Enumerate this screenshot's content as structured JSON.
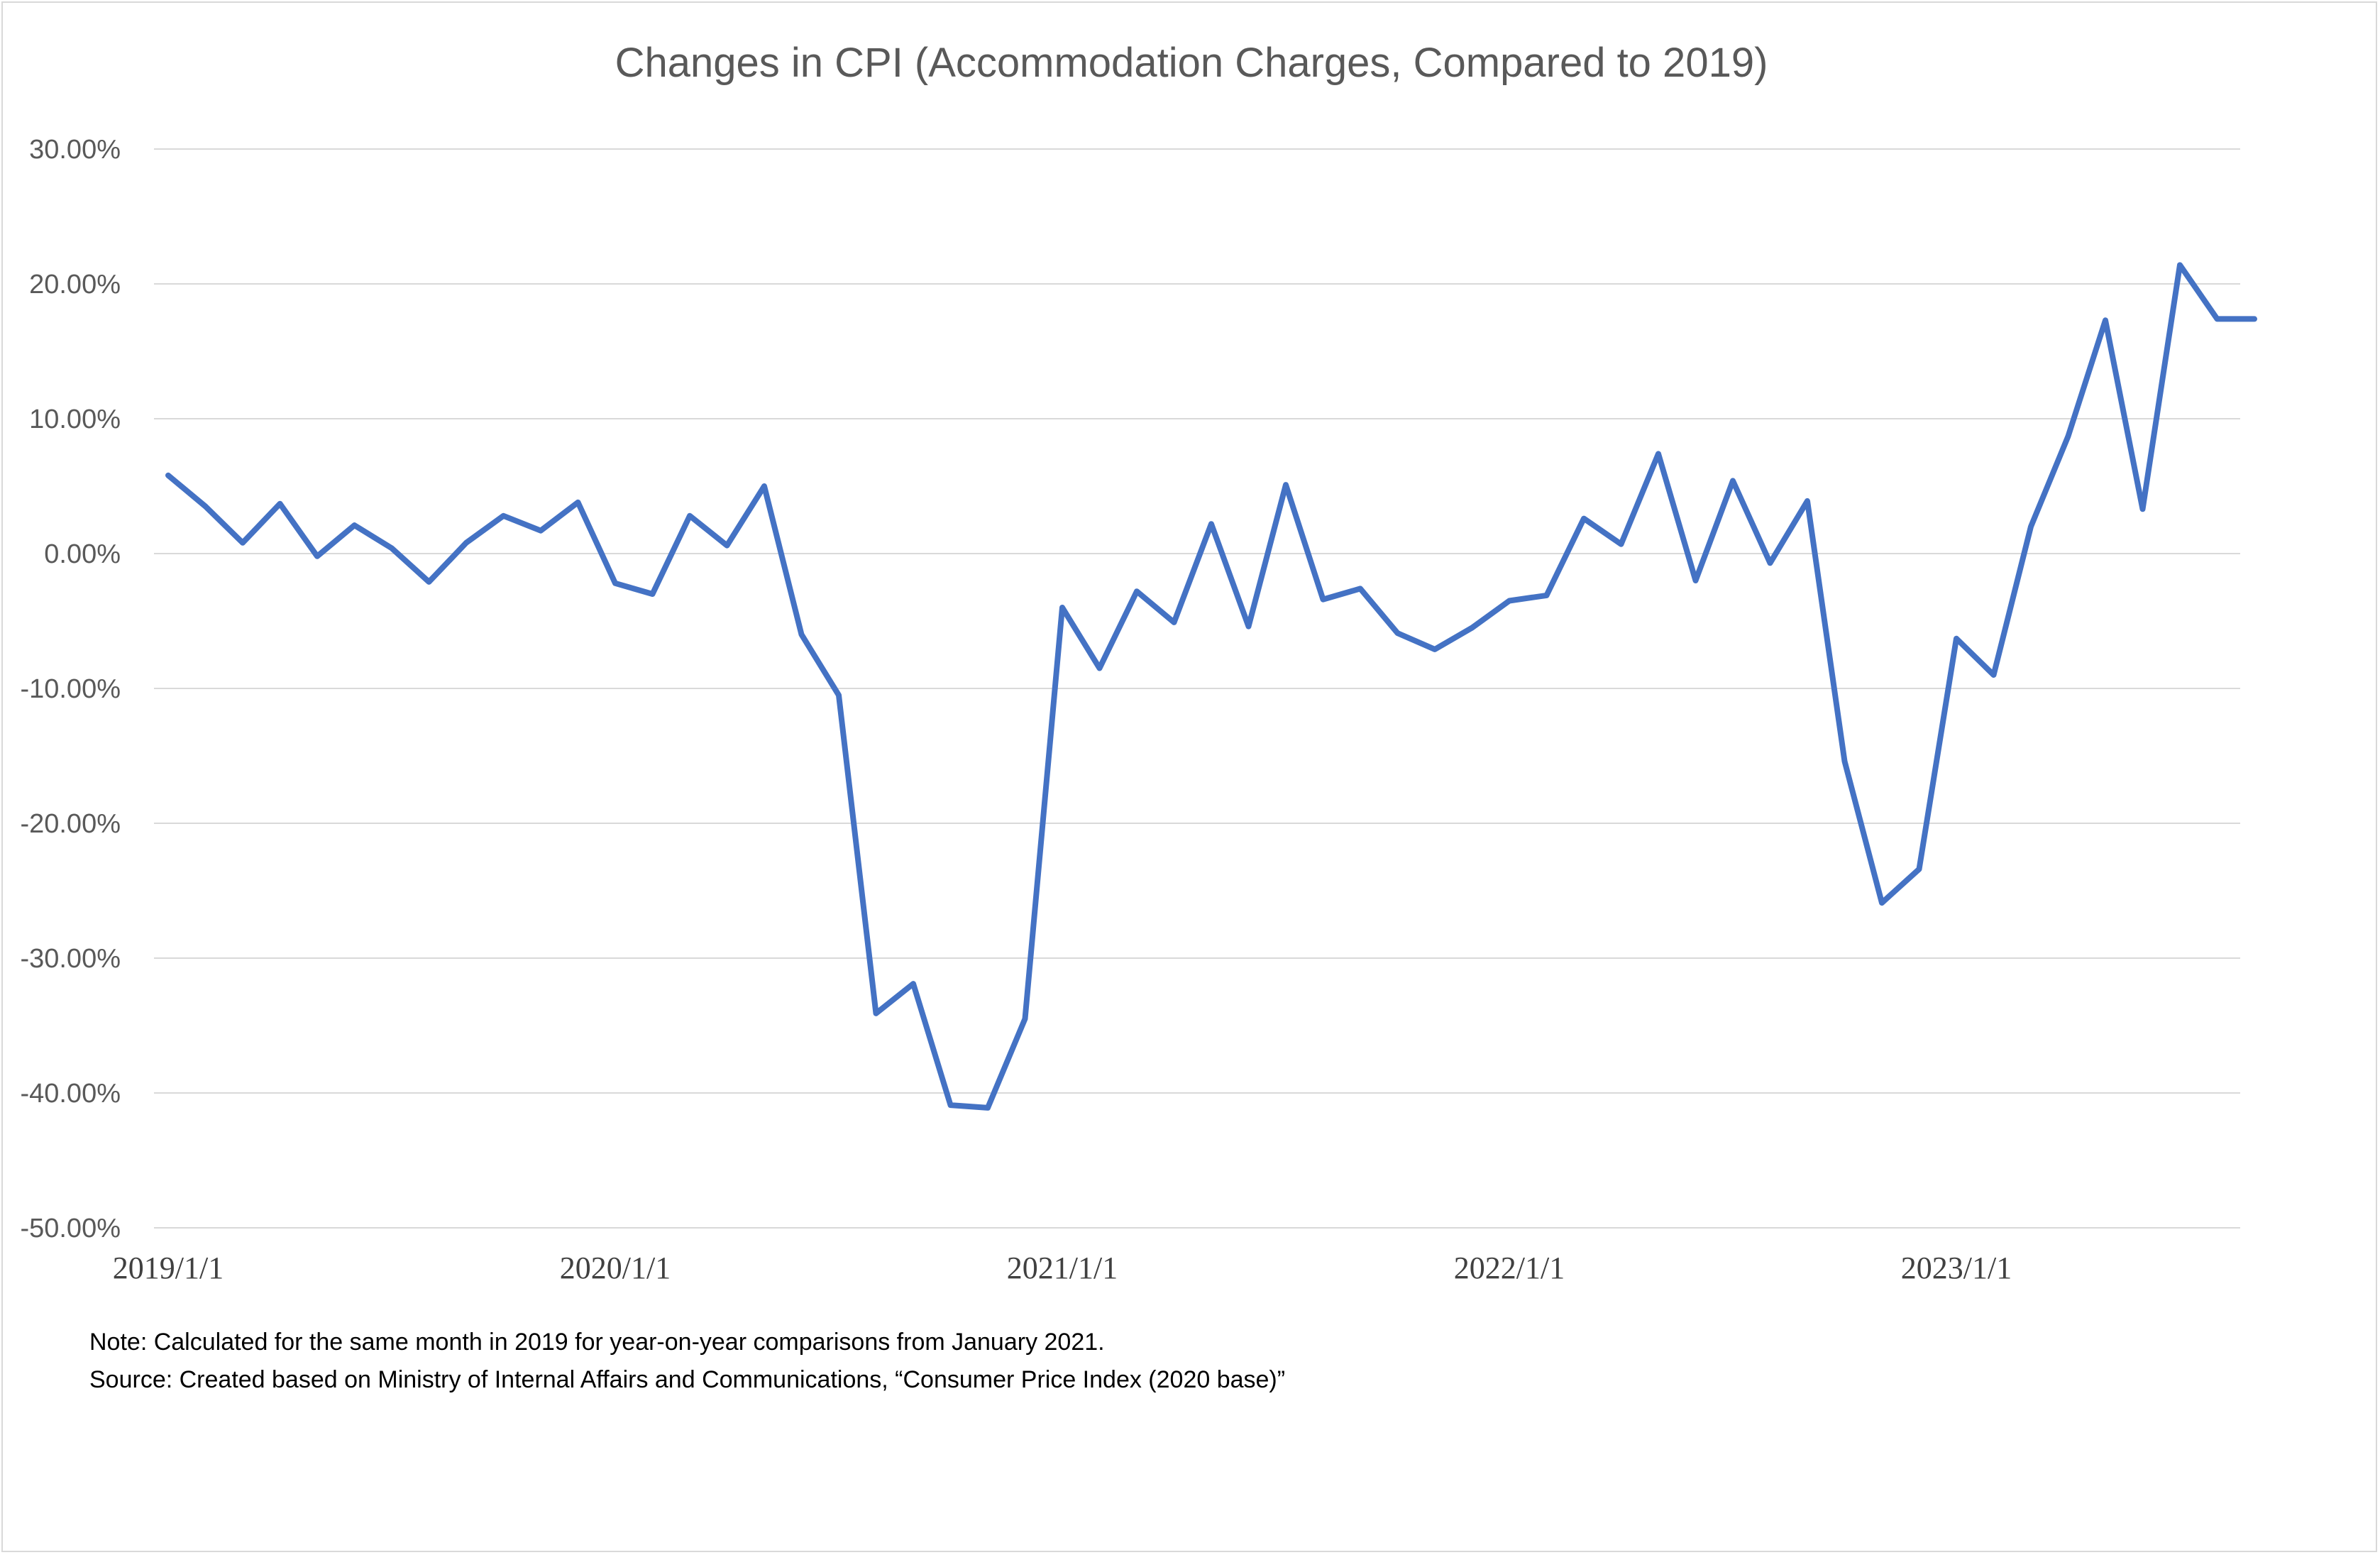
{
  "chart_data": {
    "type": "line",
    "title": "Changes in CPI (Accommodation Charges, Compared to 2019)",
    "xlabel": "",
    "ylabel": "",
    "ylim": [
      -0.5,
      0.3
    ],
    "yticks": [
      0.3,
      0.2,
      0.1,
      0.0,
      -0.1,
      -0.2,
      -0.3,
      -0.4,
      -0.5
    ],
    "ytick_labels": [
      "30.00%",
      "20.00%",
      "10.00%",
      "0.00%",
      "-10.00%",
      "-20.00%",
      "-30.00%",
      "-40.00%",
      "-50.00%"
    ],
    "xtick_labels": [
      "2019/1/1",
      "2020/1/1",
      "2021/1/1",
      "2022/1/1",
      "2023/1/1"
    ],
    "grid": true,
    "legend": "none",
    "line_color": "#4472C4",
    "series": [
      {
        "x": [
          "2019-01",
          "2019-02",
          "2019-03",
          "2019-04",
          "2019-05",
          "2019-06",
          "2019-07",
          "2019-08",
          "2019-09",
          "2019-10",
          "2019-11",
          "2019-12",
          "2020-01",
          "2020-02",
          "2020-03",
          "2020-04",
          "2020-05",
          "2020-06",
          "2020-07",
          "2020-08",
          "2020-09",
          "2020-10",
          "2020-11",
          "2020-12",
          "2021-01",
          "2021-02",
          "2021-03",
          "2021-04",
          "2021-05",
          "2021-06",
          "2021-07",
          "2021-08",
          "2021-09",
          "2021-10",
          "2021-11",
          "2021-12",
          "2022-01",
          "2022-02",
          "2022-03",
          "2022-04",
          "2022-05",
          "2022-06",
          "2022-07",
          "2022-08",
          "2022-09",
          "2022-10",
          "2022-11",
          "2022-12",
          "2023-01",
          "2023-02",
          "2023-03",
          "2023-04",
          "2023-05",
          "2023-06",
          "2023-07",
          "2023-08",
          "2023-09"
        ],
        "values": [
          0.058,
          0.035,
          0.008,
          0.037,
          -0.002,
          0.021,
          0.004,
          -0.021,
          0.008,
          0.028,
          0.017,
          0.038,
          -0.022,
          -0.03,
          0.028,
          0.006,
          0.05,
          -0.06,
          -0.105,
          -0.341,
          -0.319,
          -0.409,
          -0.411,
          -0.345,
          -0.04,
          -0.085,
          -0.028,
          -0.051,
          0.022,
          -0.054,
          0.051,
          -0.034,
          -0.026,
          -0.059,
          -0.071,
          -0.055,
          -0.035,
          -0.031,
          0.026,
          0.007,
          0.074,
          -0.02,
          0.054,
          -0.007,
          0.039,
          -0.154,
          -0.259,
          -0.234,
          -0.063,
          -0.09,
          0.02,
          0.087,
          0.173,
          0.033,
          0.214,
          0.174,
          0.174
        ]
      }
    ]
  },
  "notes": {
    "note": "Note: Calculated for the same month in 2019 for year-on-year comparisons from January 2021.",
    "source": "Source: Created based on Ministry of Internal Affairs and Communications, “Consumer Price Index (2020 base)”"
  }
}
